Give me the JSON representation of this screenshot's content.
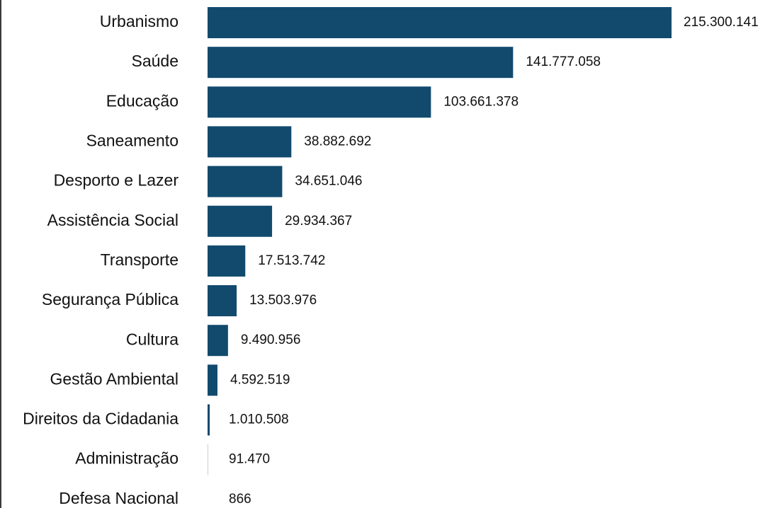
{
  "chart_data": {
    "type": "bar",
    "orientation": "horizontal",
    "categories": [
      "Urbanismo",
      "Saúde",
      "Educação",
      "Saneamento",
      "Desporto e Lazer",
      "Assistência Social",
      "Transporte",
      "Segurança Pública",
      "Cultura",
      "Gestão Ambiental",
      "Direitos da Cidadania",
      "Administração",
      "Defesa Nacional"
    ],
    "values": [
      215300141,
      141777058,
      103661378,
      38882692,
      34651046,
      29934367,
      17513742,
      13503976,
      9490956,
      4592519,
      1010508,
      91470,
      866
    ],
    "value_labels": [
      "215.300.141",
      "141.777.058",
      "103.661.378",
      "38.882.692",
      "34.651.046",
      "29.934.367",
      "17.513.742",
      "13.503.976",
      "9.490.956",
      "4.592.519",
      "1.010.508",
      "91.470",
      "866"
    ],
    "title": "",
    "xlabel": "",
    "ylabel": "",
    "xlim": [
      0,
      215300141
    ],
    "grid": false,
    "legend": "none",
    "bar_color": "#124a6e"
  }
}
